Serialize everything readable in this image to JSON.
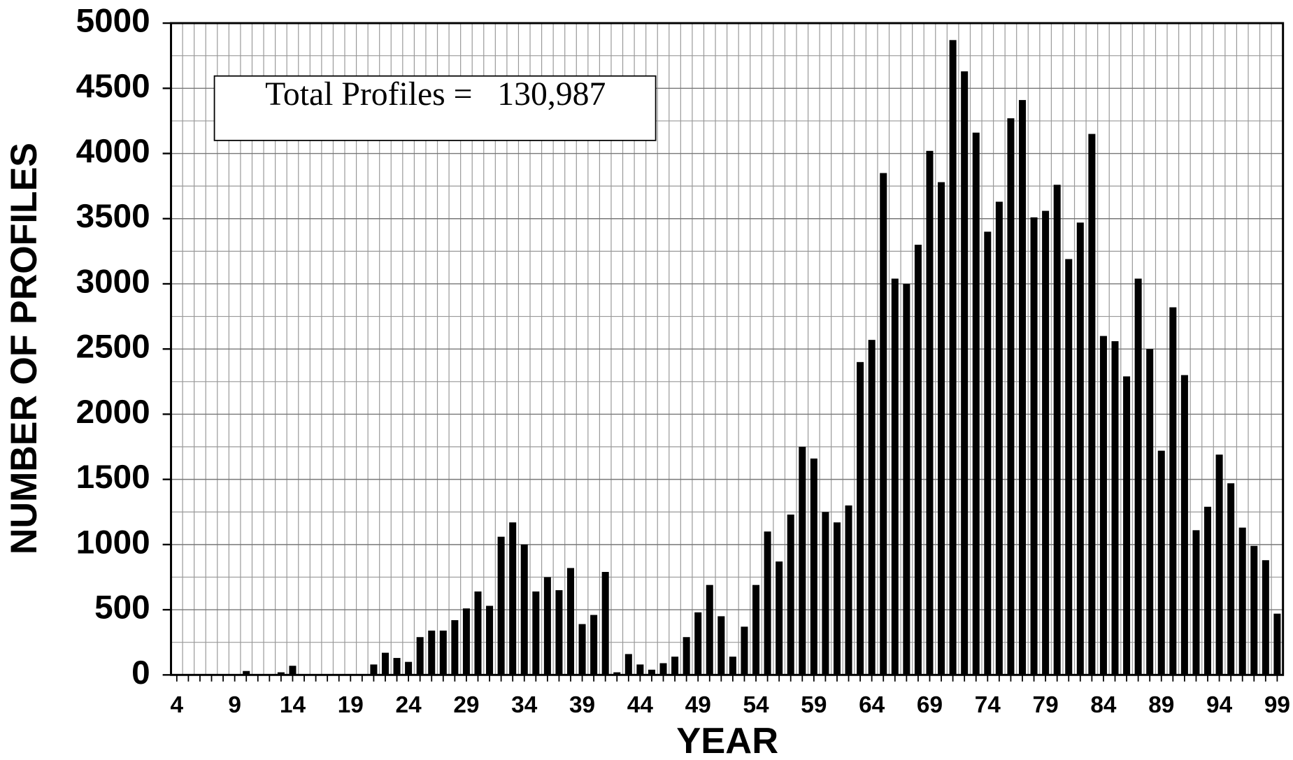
{
  "chart_data": {
    "type": "bar",
    "x_label": "YEAR",
    "y_label": "NUMBER OF PROFILES",
    "annotation": "Total Profiles =   130,987",
    "categories": [
      "4",
      null,
      null,
      null,
      null,
      "9",
      null,
      null,
      null,
      null,
      "14",
      null,
      null,
      null,
      null,
      "19",
      null,
      null,
      null,
      null,
      "24",
      null,
      null,
      null,
      null,
      "29",
      null,
      null,
      null,
      null,
      "34",
      null,
      null,
      null,
      null,
      "39",
      null,
      null,
      null,
      null,
      "44",
      null,
      null,
      null,
      null,
      "49",
      null,
      null,
      null,
      null,
      "54",
      null,
      null,
      null,
      null,
      "59",
      null,
      null,
      null,
      null,
      "64",
      null,
      null,
      null,
      null,
      "69",
      null,
      null,
      null,
      null,
      "74",
      null,
      null,
      null,
      null,
      "79",
      null,
      null,
      null,
      null,
      "84",
      null,
      null,
      null,
      null,
      "89",
      null,
      null,
      null,
      null,
      "94",
      null,
      null,
      null,
      null,
      "99"
    ],
    "values": [
      0,
      0,
      0,
      0,
      0,
      0,
      30,
      0,
      0,
      20,
      70,
      0,
      0,
      0,
      0,
      0,
      0,
      80,
      170,
      130,
      100,
      290,
      340,
      340,
      420,
      510,
      640,
      530,
      1060,
      1170,
      1000,
      640,
      750,
      650,
      820,
      390,
      460,
      790,
      20,
      160,
      80,
      40,
      90,
      140,
      290,
      480,
      690,
      450,
      140,
      370,
      690,
      1100,
      870,
      1230,
      1750,
      1660,
      1250,
      1170,
      1300,
      2400,
      2570,
      3850,
      3040,
      3000,
      3300,
      4020,
      3780,
      4870,
      4630,
      4160,
      3400,
      3630,
      4270,
      4410,
      3510,
      3560,
      3760,
      3190,
      3470,
      4150,
      2600,
      2560,
      2290,
      3040,
      2500,
      1720,
      2820,
      2300,
      1110,
      1290,
      1690,
      1470,
      1130,
      990,
      880,
      470
    ],
    "color": "#000000",
    "ylim": [
      0,
      5000
    ],
    "yticks": [
      0,
      500,
      1000,
      1500,
      2000,
      2500,
      3000,
      3500,
      4000,
      4500,
      5000
    ],
    "y_minor_ticks": [
      250,
      750,
      1250,
      1750,
      2250,
      2750,
      3250,
      3750,
      4250,
      4750
    ],
    "grid": true
  }
}
